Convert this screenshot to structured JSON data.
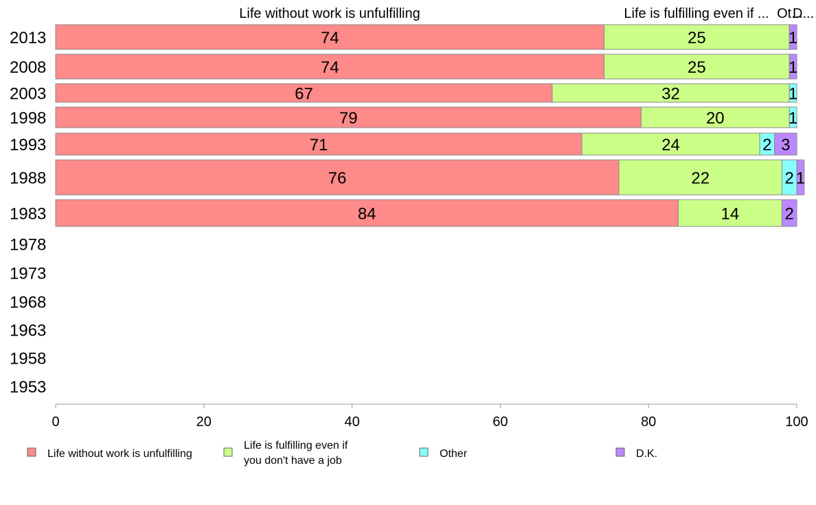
{
  "chart_data": {
    "type": "bar",
    "orientation": "horizontal",
    "stacked": true,
    "top_labels": [
      {
        "text": "Life without work is unfulfilling"
      },
      {
        "text": "Life is fulfilling even if ..."
      },
      {
        "text": "Ot..."
      },
      {
        "text": "D..."
      }
    ],
    "categories": [
      "2013",
      "2008",
      "2003",
      "1998",
      "1993",
      "1988",
      "1983",
      "1978",
      "1973",
      "1968",
      "1963",
      "1958",
      "1953"
    ],
    "series": [
      {
        "name": "Life without work is unfulfilling",
        "color": "#ff8a8a",
        "values": [
          74,
          74,
          67,
          79,
          71,
          76,
          84,
          null,
          null,
          null,
          null,
          null,
          null
        ]
      },
      {
        "name": "Life is fulfilling even if you don't have a job",
        "color": "#ccff88",
        "values": [
          25,
          25,
          32,
          20,
          24,
          22,
          14,
          null,
          null,
          null,
          null,
          null,
          null
        ]
      },
      {
        "name": "Other",
        "color": "#88ffff",
        "values": [
          0,
          0,
          1,
          1,
          2,
          2,
          0,
          null,
          null,
          null,
          null,
          null,
          null
        ]
      },
      {
        "name": "D.K.",
        "color": "#bb88ff",
        "values": [
          1,
          1,
          0,
          0,
          3,
          1,
          2,
          null,
          null,
          null,
          null,
          null,
          null
        ]
      }
    ],
    "segment_labels": [
      [
        "74",
        "25",
        "",
        "1"
      ],
      [
        "74",
        "25",
        "",
        "1"
      ],
      [
        "67",
        "32",
        "1",
        ""
      ],
      [
        "79",
        "20",
        "1",
        ""
      ],
      [
        "71",
        "24",
        "2",
        "3"
      ],
      [
        "76",
        "22",
        "2",
        "1"
      ],
      [
        "84",
        "14",
        "",
        "2"
      ]
    ],
    "xlim": [
      0,
      100
    ],
    "xticks": [
      "0",
      "20",
      "40",
      "60",
      "80",
      "100"
    ],
    "legend": {
      "position": "bottom",
      "entries": [
        {
          "lines": [
            "Life without work is unfulfilling"
          ],
          "color": "#ff8a8a"
        },
        {
          "lines": [
            "Life is fulfilling even if",
            "you don't have a job"
          ],
          "color": "#ccff88"
        },
        {
          "lines": [
            "Other"
          ],
          "color": "#88ffff"
        },
        {
          "lines": [
            "D.K."
          ],
          "color": "#bb88ff"
        }
      ]
    },
    "grid": false
  }
}
